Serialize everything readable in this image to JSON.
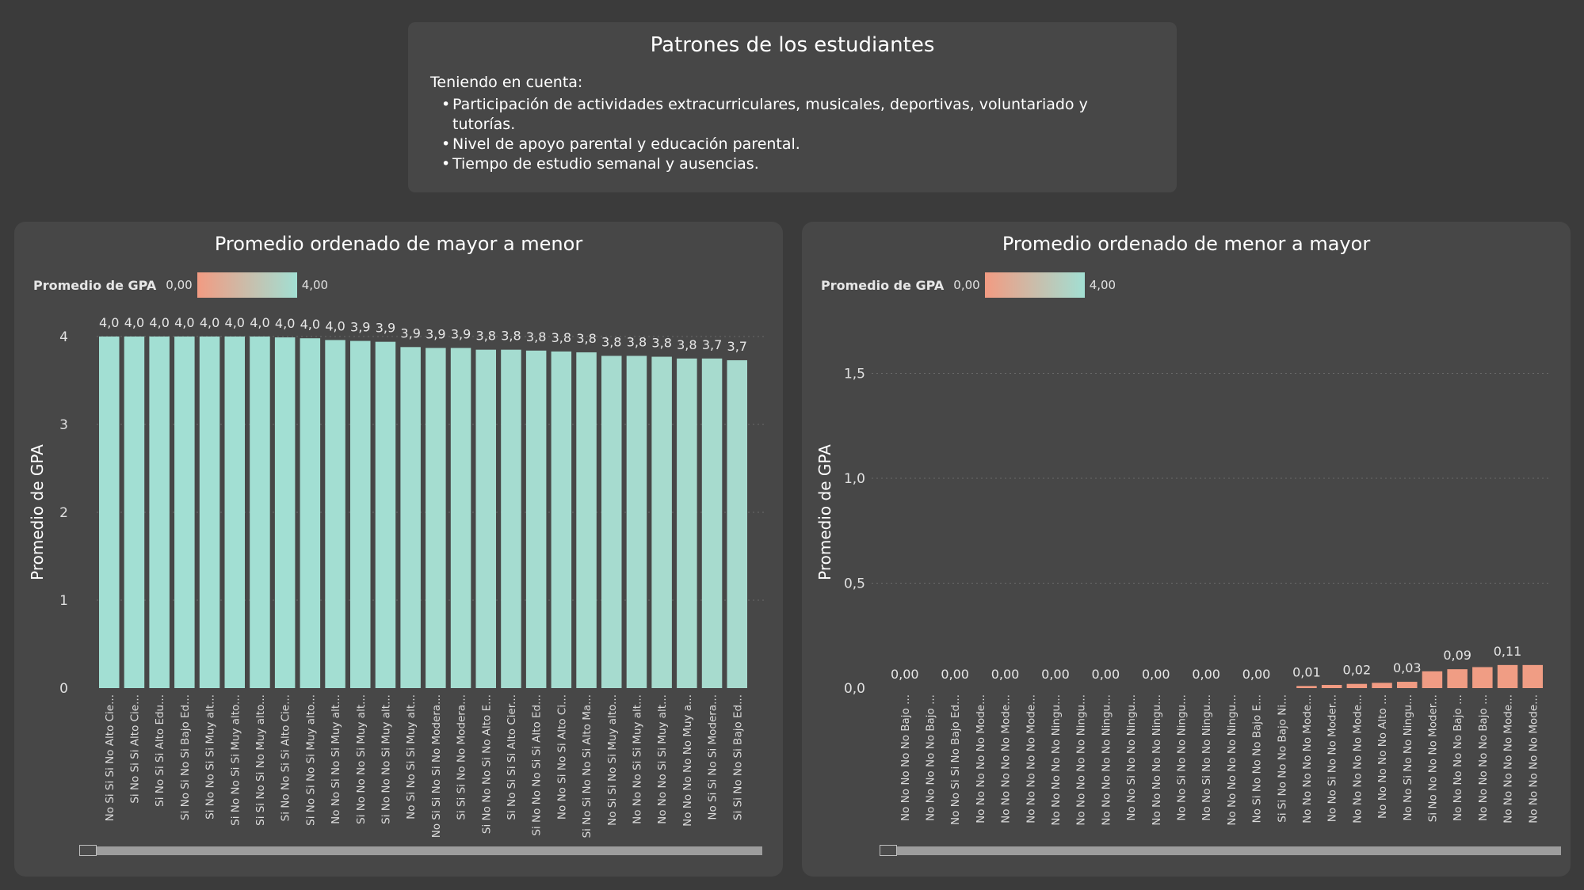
{
  "header": {
    "title": "Patrones de los estudiantes",
    "intro": "Teniendo en cuenta:",
    "bullets": [
      "Participación de actividades extracurriculares, musicales, deportivas, voluntariado y tutorías.",
      "Nivel de apoyo parental y educación parental.",
      "Tiempo de estudio semanal y ausencias."
    ]
  },
  "legend": {
    "title": "Promedio de GPA",
    "min": "0,00",
    "max": "4,00"
  },
  "colors": {
    "low": "#f29b82",
    "high": "#a2dfd3",
    "panel": "#474747",
    "background": "#3b3b3b"
  },
  "chart_data": [
    {
      "type": "bar",
      "title": "Promedio ordenado de mayor a menor",
      "ylabel": "Promedio de GPA",
      "xlabel": "",
      "ylim": [
        0,
        4
      ],
      "yticks": [
        "0",
        "1",
        "2",
        "3",
        "4"
      ],
      "grid": true,
      "color_scale": [
        0,
        4
      ],
      "categories": [
        "No Si Si Si No Alto Cie...",
        "Si No Si Si Alto Cie...",
        "Si No Si Si Alto Edu...",
        "Si No Si No Si Bajo Ed...",
        "Si No No Si Si Muy alt...",
        "Si No No Si Si Muy alto...",
        "Si Si No Si No Muy alto...",
        "Si No No Si Si Alto Cie...",
        "Si No Si No Si Muy alto...",
        "No No Si No Si Muy alt...",
        "Si No No No Si Muy alt...",
        "Si No No No Si Muy alt...",
        "No Si No Si Si Muy alt...",
        "No Si Si No Si No Modera...",
        "Si Si Si No No Modera...",
        "Si No No No Si No Alto E...",
        "Si No Si Si Si Alto Cier...",
        "Si No No No Si Si Alto Ed...",
        "No No Si No Si Alto Ci...",
        "Si No Si No No Si Alto Ma...",
        "No Si Si No Si Muy alto...",
        "No No No Si Si Muy alt...",
        "No No No Si Si Muy alt...",
        "No No No No No Muy a...",
        "No Si Si No Si Modera...",
        "Si Si No No Si Bajo Ed..."
      ],
      "values": [
        4.0,
        4.0,
        4.0,
        4.0,
        4.0,
        4.0,
        4.0,
        3.99,
        3.98,
        3.96,
        3.95,
        3.94,
        3.88,
        3.87,
        3.87,
        3.85,
        3.85,
        3.84,
        3.83,
        3.82,
        3.78,
        3.78,
        3.77,
        3.75,
        3.75,
        3.73
      ],
      "data_labels": [
        "4,0",
        "4,0",
        "4,0",
        "4,0",
        "4,0",
        "4,0",
        "4,0",
        "4,0",
        "4,0",
        "4,0",
        "3,9",
        "3,9",
        "3,9",
        "3,9",
        "3,9",
        "3,8",
        "3,8",
        "3,8",
        "3,8",
        "3,8",
        "3,8",
        "3,8",
        "3,8",
        "3,8",
        "3,7",
        "3,7"
      ]
    },
    {
      "type": "bar",
      "title": "Promedio ordenado de menor a mayor",
      "ylabel": "Promedio de GPA",
      "xlabel": "",
      "ylim": [
        0,
        1.5
      ],
      "yticks": [
        "0,0",
        "0,5",
        "1,0",
        "1,5"
      ],
      "grid": true,
      "color_scale": [
        0,
        4
      ],
      "categories": [
        "No No No No No Bajo ...",
        "No No No No No Bajo ...",
        "No No Si Si No Bajo Ed...",
        "No No No No No Mode...",
        "No No No No No Mode...",
        "No No No No No Mode...",
        "No No No No No Ningu...",
        "No No No No No Ningu...",
        "No No No No No Ningu...",
        "No No Si No No Ningu...",
        "No No No No No Ningu...",
        "No No Si No No Ningu...",
        "No No Si No No Ningu...",
        "No No No No No Ningu...",
        "No Si No No No Bajo E...",
        "Si Si No No No Bajo Ni...",
        "No No No No No Mode...",
        "No No Si No No Moder...",
        "No No No No No Mode...",
        "No No No No No Alto ...",
        "No No Si No No Ningu...",
        "Si No No No No Moder...",
        "No No No No No Bajo ...",
        "No No No No No Bajo ...",
        "No No No No No Mode...",
        "No No No No No Mode..."
      ],
      "values": [
        0,
        0,
        0,
        0,
        0,
        0,
        0,
        0,
        0,
        0,
        0,
        0,
        0,
        0,
        0,
        0,
        0.01,
        0.015,
        0.02,
        0.025,
        0.03,
        0.08,
        0.09,
        0.1,
        0.11,
        0.11
      ],
      "data_labels": [
        "0,00",
        "",
        "0,00",
        "",
        "0,00",
        "",
        "0,00",
        "",
        "0,00",
        "",
        "0,00",
        "",
        "0,00",
        "",
        "0,00",
        "",
        "0,01",
        "",
        "0,02",
        "",
        "0,03",
        "",
        "0,09",
        "",
        "0,11",
        ""
      ]
    }
  ]
}
